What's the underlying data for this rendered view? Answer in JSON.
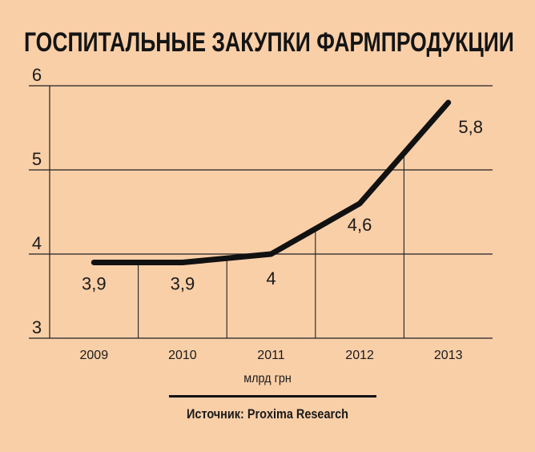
{
  "title": "ГОСПИТАЛЬНЫЕ ЗАКУПКИ ФАРМПРОДУКЦИИ",
  "unit_label": "млрд грн",
  "source": "Источник: Proxima Research",
  "chart_data": {
    "type": "line",
    "title": "ГОСПИТАЛЬНЫЕ ЗАКУПКИ ФАРМПРОДУКЦИИ",
    "xlabel": "млрд грн",
    "ylabel": "",
    "categories": [
      "2009",
      "2010",
      "2011",
      "2012",
      "2013"
    ],
    "values": [
      3.9,
      3.9,
      4.0,
      4.6,
      5.8
    ],
    "data_labels": [
      "3,9",
      "3,9",
      "4",
      "4,6",
      "5,8"
    ],
    "ylim": [
      3,
      6
    ],
    "yticks": [
      3,
      4,
      5,
      6
    ],
    "ytick_labels": [
      "3",
      "4",
      "5",
      "6"
    ],
    "grid": true,
    "line_color": "#111111",
    "background": "#f9cfa8"
  }
}
